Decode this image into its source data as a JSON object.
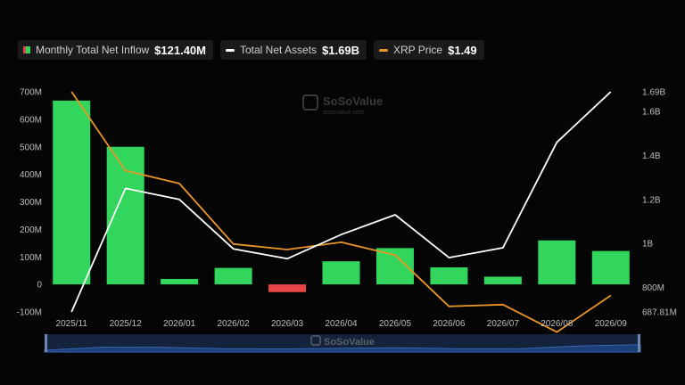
{
  "legend": {
    "items": [
      {
        "label": "Monthly Total Net Inflow",
        "value": "$121.40M"
      },
      {
        "label": "Total Net Assets",
        "value": "$1.69B"
      },
      {
        "label": "XRP Price",
        "value": "$1.49"
      }
    ]
  },
  "watermark": {
    "brand": "SoSoValue",
    "url": "sosovalue.com"
  },
  "colors": {
    "inflow_positive": "#33d65c",
    "inflow_negative": "#e84545",
    "net_assets_line": "#ffffff",
    "price_line": "#e8962a",
    "navigator_fill": "#1c3f7a"
  },
  "chart_data": {
    "type": "bar",
    "categories": [
      "2025/11",
      "2025/12",
      "2026/01",
      "2026/02",
      "2026/03",
      "2026/04",
      "2026/05",
      "2026/06",
      "2026/07",
      "2026/08",
      "2026/09"
    ],
    "series": [
      {
        "name": "Monthly Total Net Inflow",
        "type": "bar",
        "axis": "left",
        "values": [
          668,
          500,
          20,
          60,
          -28,
          84,
          132,
          62,
          28,
          160,
          121.4
        ]
      },
      {
        "name": "Total Net Assets",
        "type": "line",
        "axis": "right",
        "values": [
          687.81,
          1250,
          1200,
          975,
          930,
          1040,
          1130,
          935,
          980,
          1460,
          1690
        ]
      },
      {
        "name": "XRP Price",
        "type": "line",
        "axis": "price",
        "values": [
          2.6,
          2.17,
          2.1,
          1.77,
          1.74,
          1.78,
          1.71,
          1.43,
          1.44,
          1.29,
          1.49
        ]
      }
    ],
    "left_axis": {
      "ticks": [
        "-100M",
        "0",
        "100M",
        "200M",
        "300M",
        "400M",
        "500M",
        "600M",
        "700M"
      ],
      "ylim": [
        -100,
        700
      ]
    },
    "right_axis": {
      "ticks": [
        "687.81M",
        "800M",
        "1B",
        "1.2B",
        "1.4B",
        "1.6B",
        "1.69B"
      ],
      "ylim": [
        687.81,
        1690
      ]
    },
    "price_axis": {
      "ylim": [
        1.4,
        2.6
      ]
    },
    "grid": false,
    "legend_position": "top-left"
  }
}
